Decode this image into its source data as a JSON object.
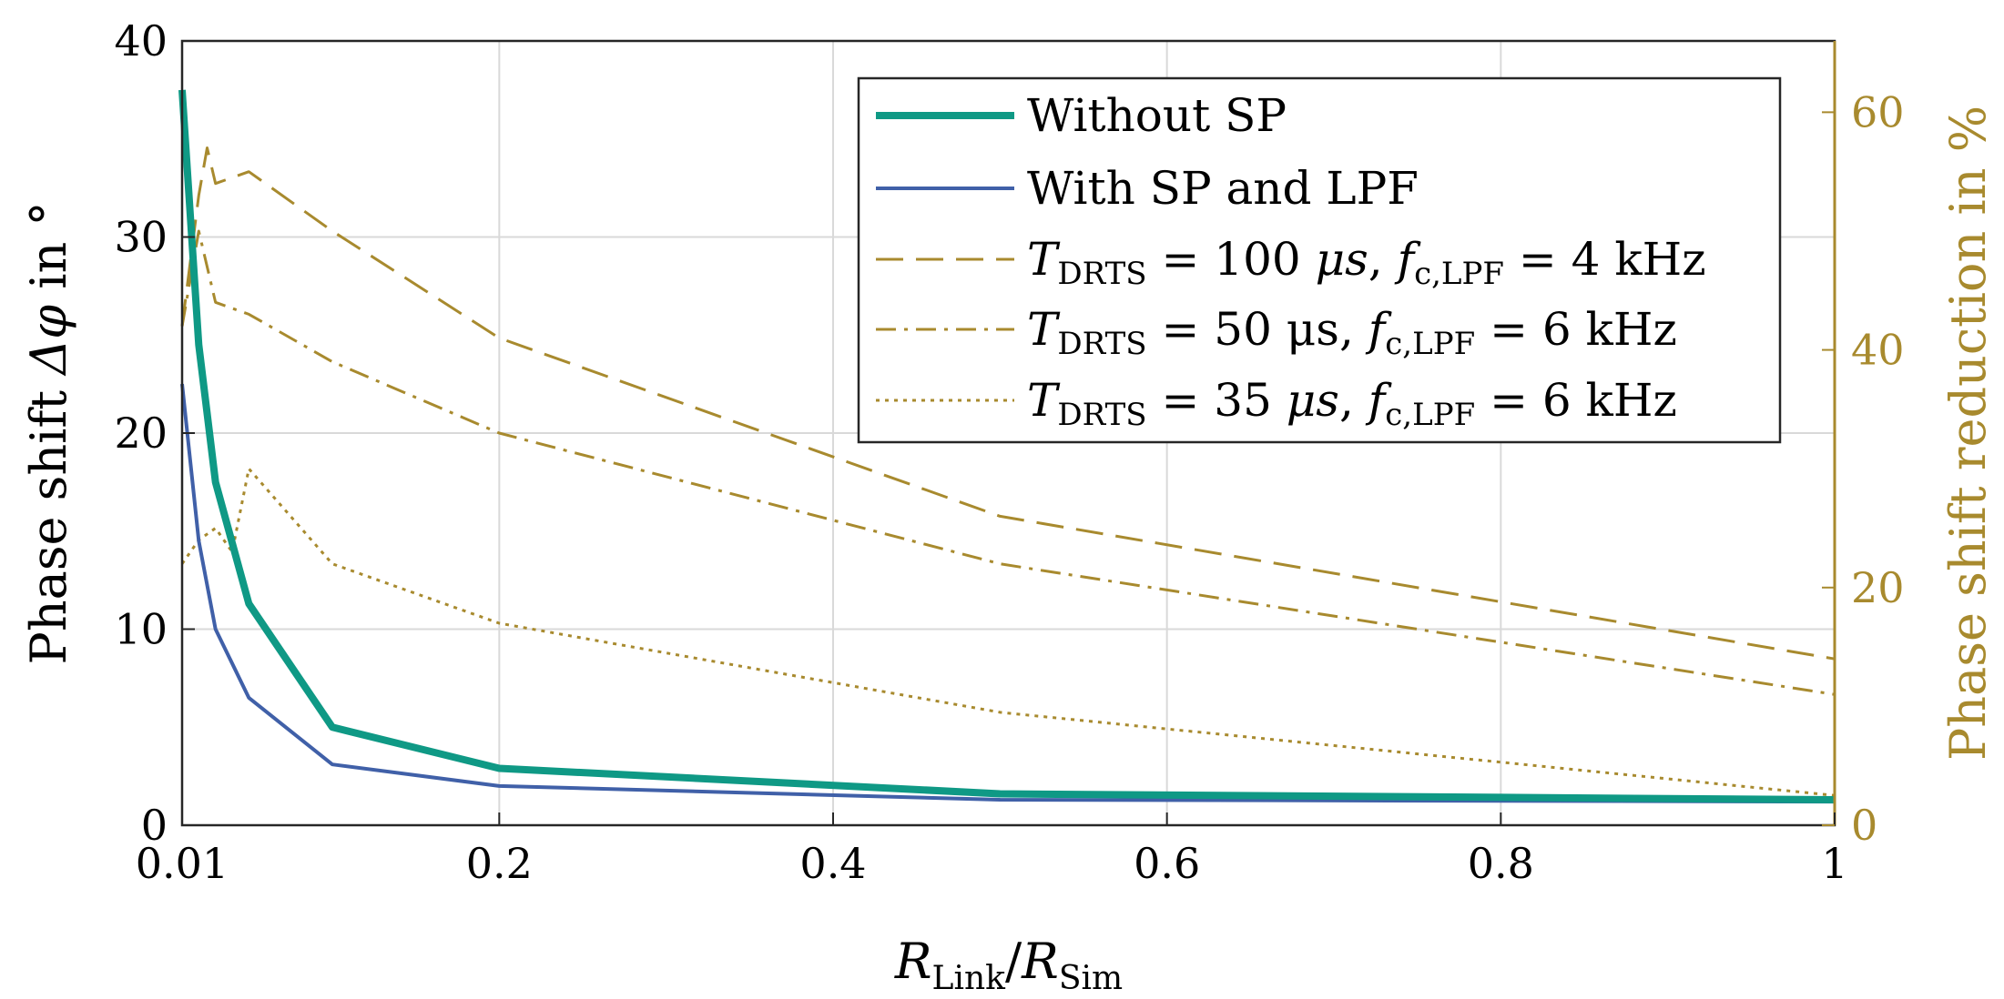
{
  "chart_data": {
    "type": "line",
    "title": "",
    "xlabel": {
      "main1": "R",
      "sub1": "Link",
      "slash": "/",
      "main2": "R",
      "sub2": "Sim"
    },
    "ylabel": {
      "text": "Phase shift ",
      "symbol": "Δφ",
      "suffix": " in °"
    },
    "y2label": "Phase shift reduction in %",
    "xlim": [
      0.01,
      1
    ],
    "ylim": [
      0,
      40
    ],
    "y2lim": [
      0,
      66
    ],
    "x_ticks": [
      0.01,
      0.2,
      0.4,
      0.6,
      0.8,
      1
    ],
    "x_tick_labels": [
      "0.01",
      "0.2",
      "0.4",
      "0.6",
      "0.8",
      "1"
    ],
    "y_ticks": [
      0,
      10,
      20,
      30,
      40
    ],
    "y_tick_labels": [
      "0",
      "10",
      "20",
      "30",
      "40"
    ],
    "y2_ticks": [
      0,
      20,
      40,
      60
    ],
    "y2_tick_labels": [
      "0",
      "20",
      "40",
      "60"
    ],
    "grid": true,
    "legend_position": "top-right",
    "colors": {
      "teal": "#0f9985",
      "blue": "#4060a8",
      "gold": "#a88a2e",
      "grid": "#d9d9d9"
    },
    "series": [
      {
        "name": "Without SP",
        "axis": "left",
        "style": "solid-thick",
        "x": [
          0.01,
          0.02,
          0.03,
          0.05,
          0.1,
          0.2,
          0.5,
          1.0
        ],
        "y": [
          37.5,
          24.5,
          17.5,
          11.3,
          5.0,
          2.9,
          1.6,
          1.3
        ]
      },
      {
        "name": "With SP and LPF",
        "axis": "left",
        "style": "solid",
        "x": [
          0.01,
          0.02,
          0.03,
          0.05,
          0.1,
          0.2,
          0.5,
          1.0
        ],
        "y": [
          22.5,
          14.5,
          10.0,
          6.5,
          3.1,
          2.0,
          1.3,
          1.2
        ]
      },
      {
        "name": "T_DRTS = 100 μs, f_c,LPF = 4 kHz",
        "legend": {
          "lhs": "T",
          "lhs_sub": "DRTS",
          "eq": " = 100 ",
          "unit": "μs",
          "sep": ", ",
          "f": "f",
          "f_sub": "c,LPF",
          "eq2": " = 4 kHz"
        },
        "axis": "right",
        "style": "dashed",
        "x": [
          0.01,
          0.02,
          0.025,
          0.03,
          0.05,
          0.1,
          0.2,
          0.5,
          1.0
        ],
        "y": [
          42,
          53,
          57,
          54,
          55,
          50,
          41,
          26,
          14
        ]
      },
      {
        "name": "T_DRTS = 50 μs, f_c,LPF = 6 kHz",
        "legend": {
          "lhs": "T",
          "lhs_sub": "DRTS",
          "eq": " = 50 ",
          "unit": "μs",
          "sep": ", ",
          "f": "f",
          "f_sub": "c,LPF",
          "eq2": " = 6 kHz"
        },
        "axis": "right",
        "style": "dashdot",
        "x": [
          0.01,
          0.02,
          0.03,
          0.05,
          0.1,
          0.2,
          0.5,
          1.0
        ],
        "y": [
          42,
          50,
          44,
          43,
          39,
          33,
          22,
          11
        ]
      },
      {
        "name": "T_DRTS = 35 μs, f_c,LPF = 6 kHz",
        "legend": {
          "lhs": "T",
          "lhs_sub": "DRTS",
          "eq": " = 35 ",
          "unit": "μs",
          "sep": ", ",
          "f": "f",
          "f_sub": "c,LPF",
          "eq2": " = 6 kHz"
        },
        "axis": "right",
        "style": "dotted",
        "x": [
          0.01,
          0.02,
          0.03,
          0.04,
          0.05,
          0.1,
          0.2,
          0.5,
          1.0
        ],
        "y": [
          22,
          24,
          25,
          23,
          30,
          22,
          17,
          9.5,
          2.5
        ]
      }
    ]
  }
}
